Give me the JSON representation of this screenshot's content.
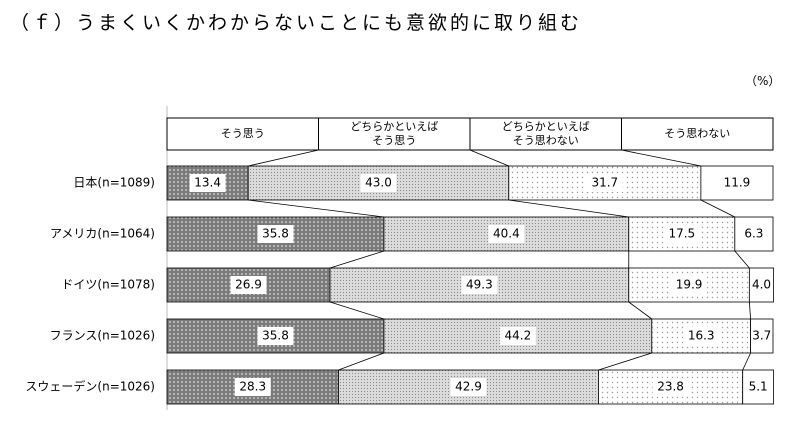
{
  "chart_data": {
    "type": "stacked-bar-100",
    "title": "（ｆ）うまくいくかわからないことにも意欲的に取り組む",
    "unit_label": "（%）",
    "categories": [
      "日本(n=1089)",
      "アメリカ(n=1064)",
      "ドイツ(n=1078)",
      "フランス(n=1026)",
      "スウェーデン(n=1026)"
    ],
    "xlim": [
      0,
      100
    ],
    "series": [
      {
        "name": "そう思う",
        "color": "#7a7a7a",
        "values": [
          13.4,
          35.8,
          26.9,
          35.8,
          28.3
        ],
        "value_labels": [
          "13.4",
          "35.8",
          "26.9",
          "35.8",
          "28.3"
        ]
      },
      {
        "name": "どちらかといえば\nそう思う",
        "color": "#dcdcdc",
        "values": [
          43.0,
          40.4,
          49.3,
          44.2,
          42.9
        ],
        "value_labels": [
          "43.0",
          "40.4",
          "49.3",
          "44.2",
          "42.9"
        ]
      },
      {
        "name": "どちらかといえば\nそう思わない",
        "color": "#ffffff",
        "values": [
          31.7,
          17.5,
          19.9,
          16.3,
          23.8
        ],
        "value_labels": [
          "31.7",
          "17.5",
          "19.9",
          "16.3",
          "23.8"
        ]
      },
      {
        "name": "そう思わない",
        "color": "#ffffff",
        "values": [
          11.9,
          6.3,
          4.0,
          3.7,
          5.1
        ],
        "value_labels": [
          "11.9",
          "6.3",
          "4.0",
          "3.7",
          "5.1"
        ]
      }
    ]
  }
}
